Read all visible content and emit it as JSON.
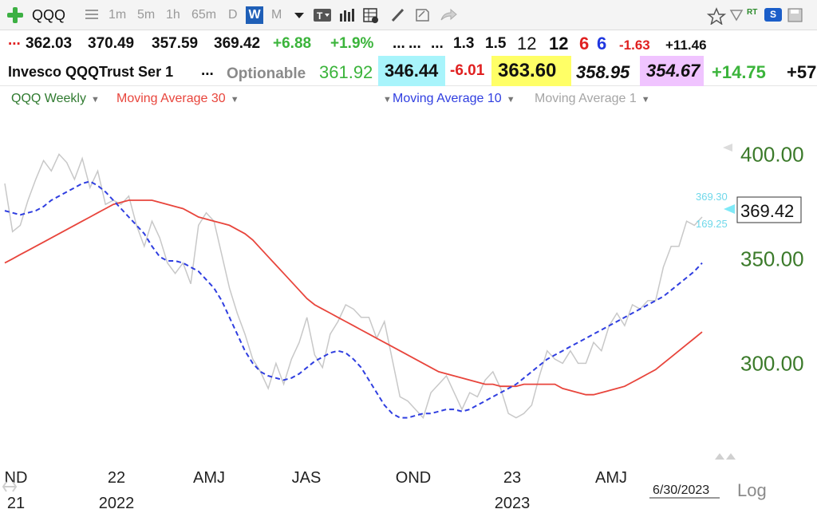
{
  "toolbar": {
    "symbol": "QQQ",
    "intervals": [
      "1m",
      "5m",
      "1h",
      "65m",
      "D",
      "W",
      "M"
    ],
    "selected_interval": "W",
    "rt_label": "RT",
    "s_label": "S"
  },
  "quote_row1": {
    "dots": "...",
    "open": "362.03",
    "high": "370.49",
    "low": "357.59",
    "close": "369.42",
    "change": "+6.88",
    "change_pct": "+1.9%",
    "f1": "...",
    "f2": "...",
    "f3": "...",
    "v1": "1.3",
    "v2": "1.5",
    "v3": "12",
    "v4": "12",
    "v5": "6",
    "v6": "6",
    "v7": "-1.63",
    "v8": "+11.46"
  },
  "quote_row2": {
    "name": "Invesco QQQTrust Ser 1",
    "dots": "...",
    "optionable": "Optionable",
    "p1": "361.92",
    "p2": "346.44",
    "p3": "-6.01",
    "p4": "363.60",
    "p5": "358.95",
    "p6": "354.67",
    "p7": "+14.75",
    "p8": "+57"
  },
  "legend": {
    "series_label": "QQQ Weekly",
    "ma30_label": "Moving Average 30",
    "ma10_label": "Moving Average 10",
    "ma1_label": "Moving Average 1"
  },
  "colors": {
    "price": "#c8c8c8",
    "ma30": "#e8453c",
    "ma10": "#2f3ee0",
    "axis_green": "#3b7a2a",
    "cyan": "#7fe9f7",
    "yellow": "#ffff66",
    "magenta": "#f0c4ff"
  },
  "chart_data": {
    "type": "line",
    "y_ticks": [
      "400.00",
      "350.00",
      "300.00"
    ],
    "ylim": [
      262,
      407
    ],
    "x_ticks": [
      {
        "label": "ND",
        "sub": "21"
      },
      {
        "label": "22",
        "sub": "2022"
      },
      {
        "label": "AMJ",
        "sub": ""
      },
      {
        "label": "JAS",
        "sub": ""
      },
      {
        "label": "OND",
        "sub": ""
      },
      {
        "label": "23",
        "sub": "2023"
      },
      {
        "label": "AMJ",
        "sub": ""
      }
    ],
    "last_price_label": "369.42",
    "upper_label": "369.30",
    "lower_label": "169.25",
    "date_label": "6/30/2023",
    "scale_label": "Log",
    "series": [
      {
        "name": "QQQ Weekly",
        "color": "#c8c8c8",
        "style": "solid",
        "values": [
          386,
          363,
          366,
          378,
          388,
          397,
          392,
          400,
          396,
          388,
          398,
          384,
          392,
          376,
          378,
          376,
          380,
          366,
          356,
          368,
          360,
          348,
          343,
          348,
          338,
          366,
          372,
          368,
          352,
          336,
          324,
          314,
          302,
          296,
          288,
          300,
          290,
          302,
          310,
          322,
          304,
          298,
          314,
          320,
          328,
          326,
          322,
          322,
          312,
          320,
          302,
          284,
          282,
          278,
          274,
          286,
          290,
          294,
          286,
          278,
          286,
          284,
          292,
          296,
          288,
          276,
          274,
          276,
          280,
          294,
          306,
          302,
          300,
          306,
          300,
          300,
          310,
          306,
          318,
          324,
          318,
          328,
          326,
          330,
          330,
          346,
          356,
          356,
          368,
          366,
          370
        ]
      },
      {
        "name": "Moving Average 30",
        "color": "#e8453c",
        "style": "solid",
        "values": [
          348,
          350,
          352,
          354,
          356,
          358,
          360,
          362,
          364,
          366,
          368,
          370,
          372,
          374,
          376,
          377,
          378,
          378,
          378,
          378,
          377,
          376,
          375,
          374,
          372,
          370,
          369,
          368,
          367,
          366,
          364,
          362,
          359,
          355,
          351,
          347,
          343,
          339,
          335,
          331,
          328,
          326,
          324,
          322,
          320,
          318,
          316,
          314,
          312,
          310,
          308,
          306,
          304,
          302,
          300,
          298,
          296,
          295,
          294,
          293,
          292,
          291,
          290,
          290,
          289,
          289,
          289,
          290,
          290,
          290,
          290,
          290,
          288,
          287,
          286,
          285,
          285,
          286,
          287,
          288,
          289,
          291,
          293,
          295,
          297,
          300,
          303,
          306,
          309,
          312,
          315
        ]
      },
      {
        "name": "Moving Average 10",
        "color": "#2f3ee0",
        "style": "dashed",
        "values": [
          373,
          372,
          371,
          372,
          373,
          375,
          378,
          380,
          382,
          384,
          386,
          387,
          385,
          382,
          378,
          374,
          370,
          366,
          362,
          356,
          351,
          349,
          349,
          348,
          346,
          344,
          340,
          336,
          330,
          322,
          314,
          306,
          300,
          296,
          294,
          293,
          292,
          293,
          295,
          298,
          301,
          303,
          305,
          306,
          305,
          302,
          298,
          292,
          286,
          280,
          276,
          274,
          274,
          275,
          276,
          276,
          277,
          278,
          278,
          277,
          278,
          280,
          282,
          284,
          286,
          288,
          290,
          293,
          296,
          299,
          302,
          304,
          306,
          308,
          310,
          312,
          314,
          316,
          318,
          320,
          322,
          324,
          326,
          328,
          330,
          332,
          335,
          338,
          341,
          344,
          348
        ]
      }
    ]
  }
}
